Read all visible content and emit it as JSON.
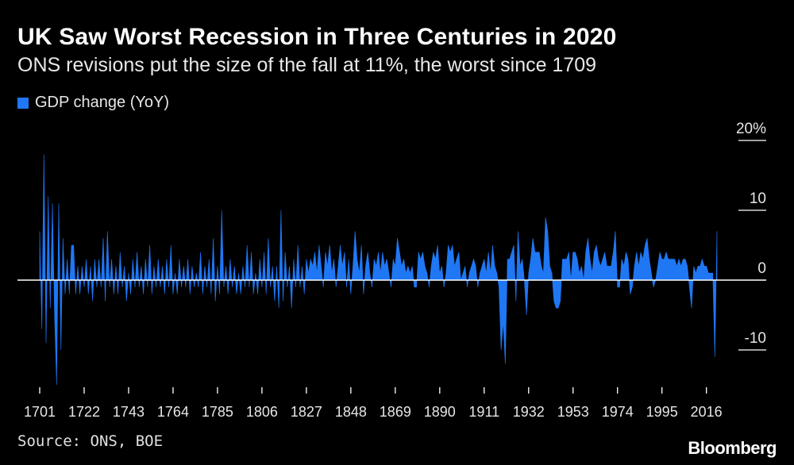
{
  "header": {
    "title": "UK Saw Worst Recession in Three Centuries in 2020",
    "subtitle": "ONS revisions put the size of the fall at 11%, the worst since 1709"
  },
  "legend": {
    "label": "GDP change (YoY)",
    "color": "#1f77f4"
  },
  "footer": {
    "source": "Source: ONS, BOE",
    "brand": "Bloomberg"
  },
  "chart_data": {
    "type": "area",
    "title": "UK Saw Worst Recession in Three Centuries in 2020",
    "subtitle": "ONS revisions put the size of the fall at 11%, the worst since 1709",
    "series": [
      {
        "name": "GDP change (YoY)",
        "color": "#1f77f4",
        "points": [
          [
            1701,
            7
          ],
          [
            1702,
            -7
          ],
          [
            1703,
            18
          ],
          [
            1704,
            -9
          ],
          [
            1705,
            12
          ],
          [
            1706,
            -4
          ],
          [
            1707,
            11
          ],
          [
            1708,
            -5
          ],
          [
            1709,
            -15
          ],
          [
            1710,
            11
          ],
          [
            1711,
            -10
          ],
          [
            1712,
            6
          ],
          [
            1713,
            -2
          ],
          [
            1714,
            3
          ],
          [
            1715,
            -2
          ],
          [
            1716,
            5
          ],
          [
            1717,
            5
          ],
          [
            1718,
            -2
          ],
          [
            1719,
            2
          ],
          [
            1720,
            -2
          ],
          [
            1721,
            2
          ],
          [
            1722,
            -1
          ],
          [
            1723,
            3
          ],
          [
            1724,
            -2
          ],
          [
            1725,
            2
          ],
          [
            1726,
            -3
          ],
          [
            1727,
            3
          ],
          [
            1728,
            -1
          ],
          [
            1729,
            3
          ],
          [
            1730,
            -1
          ],
          [
            1731,
            6
          ],
          [
            1732,
            -3
          ],
          [
            1733,
            7
          ],
          [
            1734,
            -1
          ],
          [
            1735,
            3
          ],
          [
            1736,
            -2
          ],
          [
            1737,
            2
          ],
          [
            1738,
            -2
          ],
          [
            1739,
            4
          ],
          [
            1740,
            -1
          ],
          [
            1741,
            2
          ],
          [
            1742,
            -3
          ],
          [
            1743,
            1
          ],
          [
            1744,
            -2
          ],
          [
            1745,
            3
          ],
          [
            1746,
            -1
          ],
          [
            1747,
            4
          ],
          [
            1748,
            -1
          ],
          [
            1749,
            2
          ],
          [
            1750,
            -2
          ],
          [
            1751,
            3
          ],
          [
            1752,
            -1
          ],
          [
            1753,
            5
          ],
          [
            1754,
            -2
          ],
          [
            1755,
            2
          ],
          [
            1756,
            -1
          ],
          [
            1757,
            3
          ],
          [
            1758,
            -1
          ],
          [
            1759,
            2
          ],
          [
            1760,
            -2
          ],
          [
            1761,
            3
          ],
          [
            1762,
            -1
          ],
          [
            1763,
            5
          ],
          [
            1764,
            -2
          ],
          [
            1765,
            1
          ],
          [
            1766,
            -2
          ],
          [
            1767,
            3
          ],
          [
            1768,
            -1
          ],
          [
            1769,
            2
          ],
          [
            1770,
            -1
          ],
          [
            1771,
            3
          ],
          [
            1772,
            -2
          ],
          [
            1773,
            2
          ],
          [
            1774,
            -1
          ],
          [
            1775,
            1
          ],
          [
            1776,
            -1
          ],
          [
            1777,
            4
          ],
          [
            1778,
            -2
          ],
          [
            1779,
            2
          ],
          [
            1780,
            -1
          ],
          [
            1781,
            3
          ],
          [
            1782,
            -2
          ],
          [
            1783,
            6
          ],
          [
            1784,
            -3
          ],
          [
            1785,
            2
          ],
          [
            1786,
            -2
          ],
          [
            1787,
            10
          ],
          [
            1788,
            -1
          ],
          [
            1789,
            2
          ],
          [
            1790,
            -2
          ],
          [
            1791,
            3
          ],
          [
            1792,
            -1
          ],
          [
            1793,
            2
          ],
          [
            1794,
            -2
          ],
          [
            1795,
            1
          ],
          [
            1796,
            -2
          ],
          [
            1797,
            2
          ],
          [
            1798,
            -1
          ],
          [
            1799,
            5
          ],
          [
            1800,
            -1
          ],
          [
            1801,
            4
          ],
          [
            1802,
            -2
          ],
          [
            1803,
            1
          ],
          [
            1804,
            -2
          ],
          [
            1805,
            3
          ],
          [
            1806,
            -1
          ],
          [
            1807,
            4
          ],
          [
            1808,
            -2
          ],
          [
            1809,
            6
          ],
          [
            1810,
            -1
          ],
          [
            1811,
            2
          ],
          [
            1812,
            -3
          ],
          [
            1813,
            2
          ],
          [
            1814,
            -4
          ],
          [
            1815,
            10
          ],
          [
            1816,
            -3
          ],
          [
            1817,
            4
          ],
          [
            1818,
            -1
          ],
          [
            1819,
            2
          ],
          [
            1820,
            -4
          ],
          [
            1821,
            3
          ],
          [
            1822,
            -1
          ],
          [
            1823,
            5
          ],
          [
            1824,
            -1
          ],
          [
            1825,
            2
          ],
          [
            1826,
            -2
          ],
          [
            1827,
            3
          ],
          [
            1828,
            1
          ],
          [
            1829,
            3
          ],
          [
            1830,
            2
          ],
          [
            1831,
            4
          ],
          [
            1832,
            1
          ],
          [
            1833,
            5
          ],
          [
            1834,
            2
          ],
          [
            1835,
            -1
          ],
          [
            1836,
            4
          ],
          [
            1837,
            2
          ],
          [
            1838,
            5
          ],
          [
            1839,
            1
          ],
          [
            1840,
            3
          ],
          [
            1841,
            -1
          ],
          [
            1842,
            2
          ],
          [
            1843,
            5
          ],
          [
            1844,
            2
          ],
          [
            1845,
            4
          ],
          [
            1846,
            -1
          ],
          [
            1847,
            3
          ],
          [
            1848,
            -2
          ],
          [
            1849,
            2
          ],
          [
            1850,
            7
          ],
          [
            1851,
            3
          ],
          [
            1852,
            1
          ],
          [
            1853,
            5
          ],
          [
            1854,
            -2
          ],
          [
            1855,
            2
          ],
          [
            1856,
            4
          ],
          [
            1857,
            1
          ],
          [
            1858,
            -1
          ],
          [
            1859,
            3
          ],
          [
            1860,
            2
          ],
          [
            1861,
            4
          ],
          [
            1862,
            1
          ],
          [
            1863,
            4
          ],
          [
            1864,
            2
          ],
          [
            1865,
            3
          ],
          [
            1866,
            1
          ],
          [
            1867,
            -1
          ],
          [
            1868,
            3
          ],
          [
            1869,
            2
          ],
          [
            1870,
            6
          ],
          [
            1871,
            4
          ],
          [
            1872,
            2
          ],
          [
            1873,
            3
          ],
          [
            1874,
            1
          ],
          [
            1875,
            2
          ],
          [
            1876,
            1
          ],
          [
            1877,
            2
          ],
          [
            1878,
            -1
          ],
          [
            1879,
            -1
          ],
          [
            1880,
            4
          ],
          [
            1881,
            3
          ],
          [
            1882,
            4
          ],
          [
            1883,
            2
          ],
          [
            1884,
            1
          ],
          [
            1885,
            -1
          ],
          [
            1886,
            2
          ],
          [
            1887,
            4
          ],
          [
            1888,
            3
          ],
          [
            1889,
            5
          ],
          [
            1890,
            1
          ],
          [
            1891,
            2
          ],
          [
            1892,
            -1
          ],
          [
            1893,
            1
          ],
          [
            1894,
            5
          ],
          [
            1895,
            4
          ],
          [
            1896,
            5
          ],
          [
            1897,
            2
          ],
          [
            1898,
            3
          ],
          [
            1899,
            4
          ],
          [
            1900,
            0
          ],
          [
            1901,
            1
          ],
          [
            1902,
            2
          ],
          [
            1903,
            -1
          ],
          [
            1904,
            1
          ],
          [
            1905,
            2
          ],
          [
            1906,
            3
          ],
          [
            1907,
            2
          ],
          [
            1908,
            -1
          ],
          [
            1909,
            1
          ],
          [
            1910,
            2
          ],
          [
            1911,
            3
          ],
          [
            1912,
            1
          ],
          [
            1913,
            4
          ],
          [
            1914,
            1
          ],
          [
            1915,
            5
          ],
          [
            1916,
            2
          ],
          [
            1917,
            1
          ],
          [
            1918,
            -1
          ],
          [
            1919,
            -10
          ],
          [
            1920,
            -6
          ],
          [
            1921,
            -12
          ],
          [
            1922,
            3
          ],
          [
            1923,
            3
          ],
          [
            1924,
            4
          ],
          [
            1925,
            5
          ],
          [
            1926,
            -3
          ],
          [
            1927,
            7
          ],
          [
            1928,
            2
          ],
          [
            1929,
            3
          ],
          [
            1930,
            0
          ],
          [
            1931,
            -5
          ],
          [
            1932,
            1
          ],
          [
            1933,
            3
          ],
          [
            1934,
            6
          ],
          [
            1935,
            4
          ],
          [
            1936,
            4
          ],
          [
            1937,
            4
          ],
          [
            1938,
            2
          ],
          [
            1939,
            1
          ],
          [
            1940,
            9
          ],
          [
            1941,
            7
          ],
          [
            1942,
            2
          ],
          [
            1943,
            1
          ],
          [
            1944,
            -3
          ],
          [
            1945,
            -4
          ],
          [
            1946,
            -4
          ],
          [
            1947,
            -3
          ],
          [
            1948,
            3
          ],
          [
            1949,
            3
          ],
          [
            1950,
            3
          ],
          [
            1951,
            4
          ],
          [
            1952,
            0
          ],
          [
            1953,
            4
          ],
          [
            1954,
            4
          ],
          [
            1955,
            3
          ],
          [
            1956,
            1
          ],
          [
            1957,
            2
          ],
          [
            1958,
            0
          ],
          [
            1959,
            4
          ],
          [
            1960,
            6
          ],
          [
            1961,
            3
          ],
          [
            1962,
            1
          ],
          [
            1963,
            4
          ],
          [
            1964,
            5
          ],
          [
            1965,
            3
          ],
          [
            1966,
            2
          ],
          [
            1967,
            3
          ],
          [
            1968,
            4
          ],
          [
            1969,
            2
          ],
          [
            1970,
            2
          ],
          [
            1971,
            2
          ],
          [
            1972,
            4
          ],
          [
            1973,
            7
          ],
          [
            1974,
            -1
          ],
          [
            1975,
            -1
          ],
          [
            1976,
            3
          ],
          [
            1977,
            2
          ],
          [
            1978,
            4
          ],
          [
            1979,
            3
          ],
          [
            1980,
            -2
          ],
          [
            1981,
            -1
          ],
          [
            1982,
            2
          ],
          [
            1983,
            4
          ],
          [
            1984,
            2
          ],
          [
            1985,
            4
          ],
          [
            1986,
            3
          ],
          [
            1987,
            5
          ],
          [
            1988,
            6
          ],
          [
            1989,
            3
          ],
          [
            1990,
            1
          ],
          [
            1991,
            -1
          ],
          [
            1992,
            0
          ],
          [
            1993,
            2
          ],
          [
            1994,
            4
          ],
          [
            1995,
            3
          ],
          [
            1996,
            3
          ],
          [
            1997,
            4
          ],
          [
            1998,
            3
          ],
          [
            1999,
            3
          ],
          [
            2000,
            3
          ],
          [
            2001,
            3
          ],
          [
            2002,
            2
          ],
          [
            2003,
            3
          ],
          [
            2004,
            2
          ],
          [
            2005,
            3
          ],
          [
            2006,
            3
          ],
          [
            2007,
            2
          ],
          [
            2008,
            -1
          ],
          [
            2009,
            -4
          ],
          [
            2010,
            2
          ],
          [
            2011,
            1
          ],
          [
            2012,
            2
          ],
          [
            2013,
            2
          ],
          [
            2014,
            3
          ],
          [
            2015,
            2
          ],
          [
            2016,
            2
          ],
          [
            2017,
            1
          ],
          [
            2018,
            1
          ],
          [
            2019,
            1
          ],
          [
            2020,
            -11
          ],
          [
            2021,
            7
          ]
        ]
      }
    ],
    "xlabel": "",
    "ylabel": "",
    "xlim": [
      1701,
      2021
    ],
    "ylim": [
      -15,
      20
    ],
    "x_ticks": [
      "1701",
      "1722",
      "1743",
      "1764",
      "1785",
      "1806",
      "1827",
      "1848",
      "1869",
      "1890",
      "1911",
      "1932",
      "1953",
      "1974",
      "1995",
      "2016"
    ],
    "y_ticks": [
      {
        "value": 20,
        "label": "20%"
      },
      {
        "value": 10,
        "label": "10"
      },
      {
        "value": 0,
        "label": "0"
      },
      {
        "value": -10,
        "label": "-10"
      }
    ],
    "grid": false,
    "legend_position": "top-left"
  }
}
